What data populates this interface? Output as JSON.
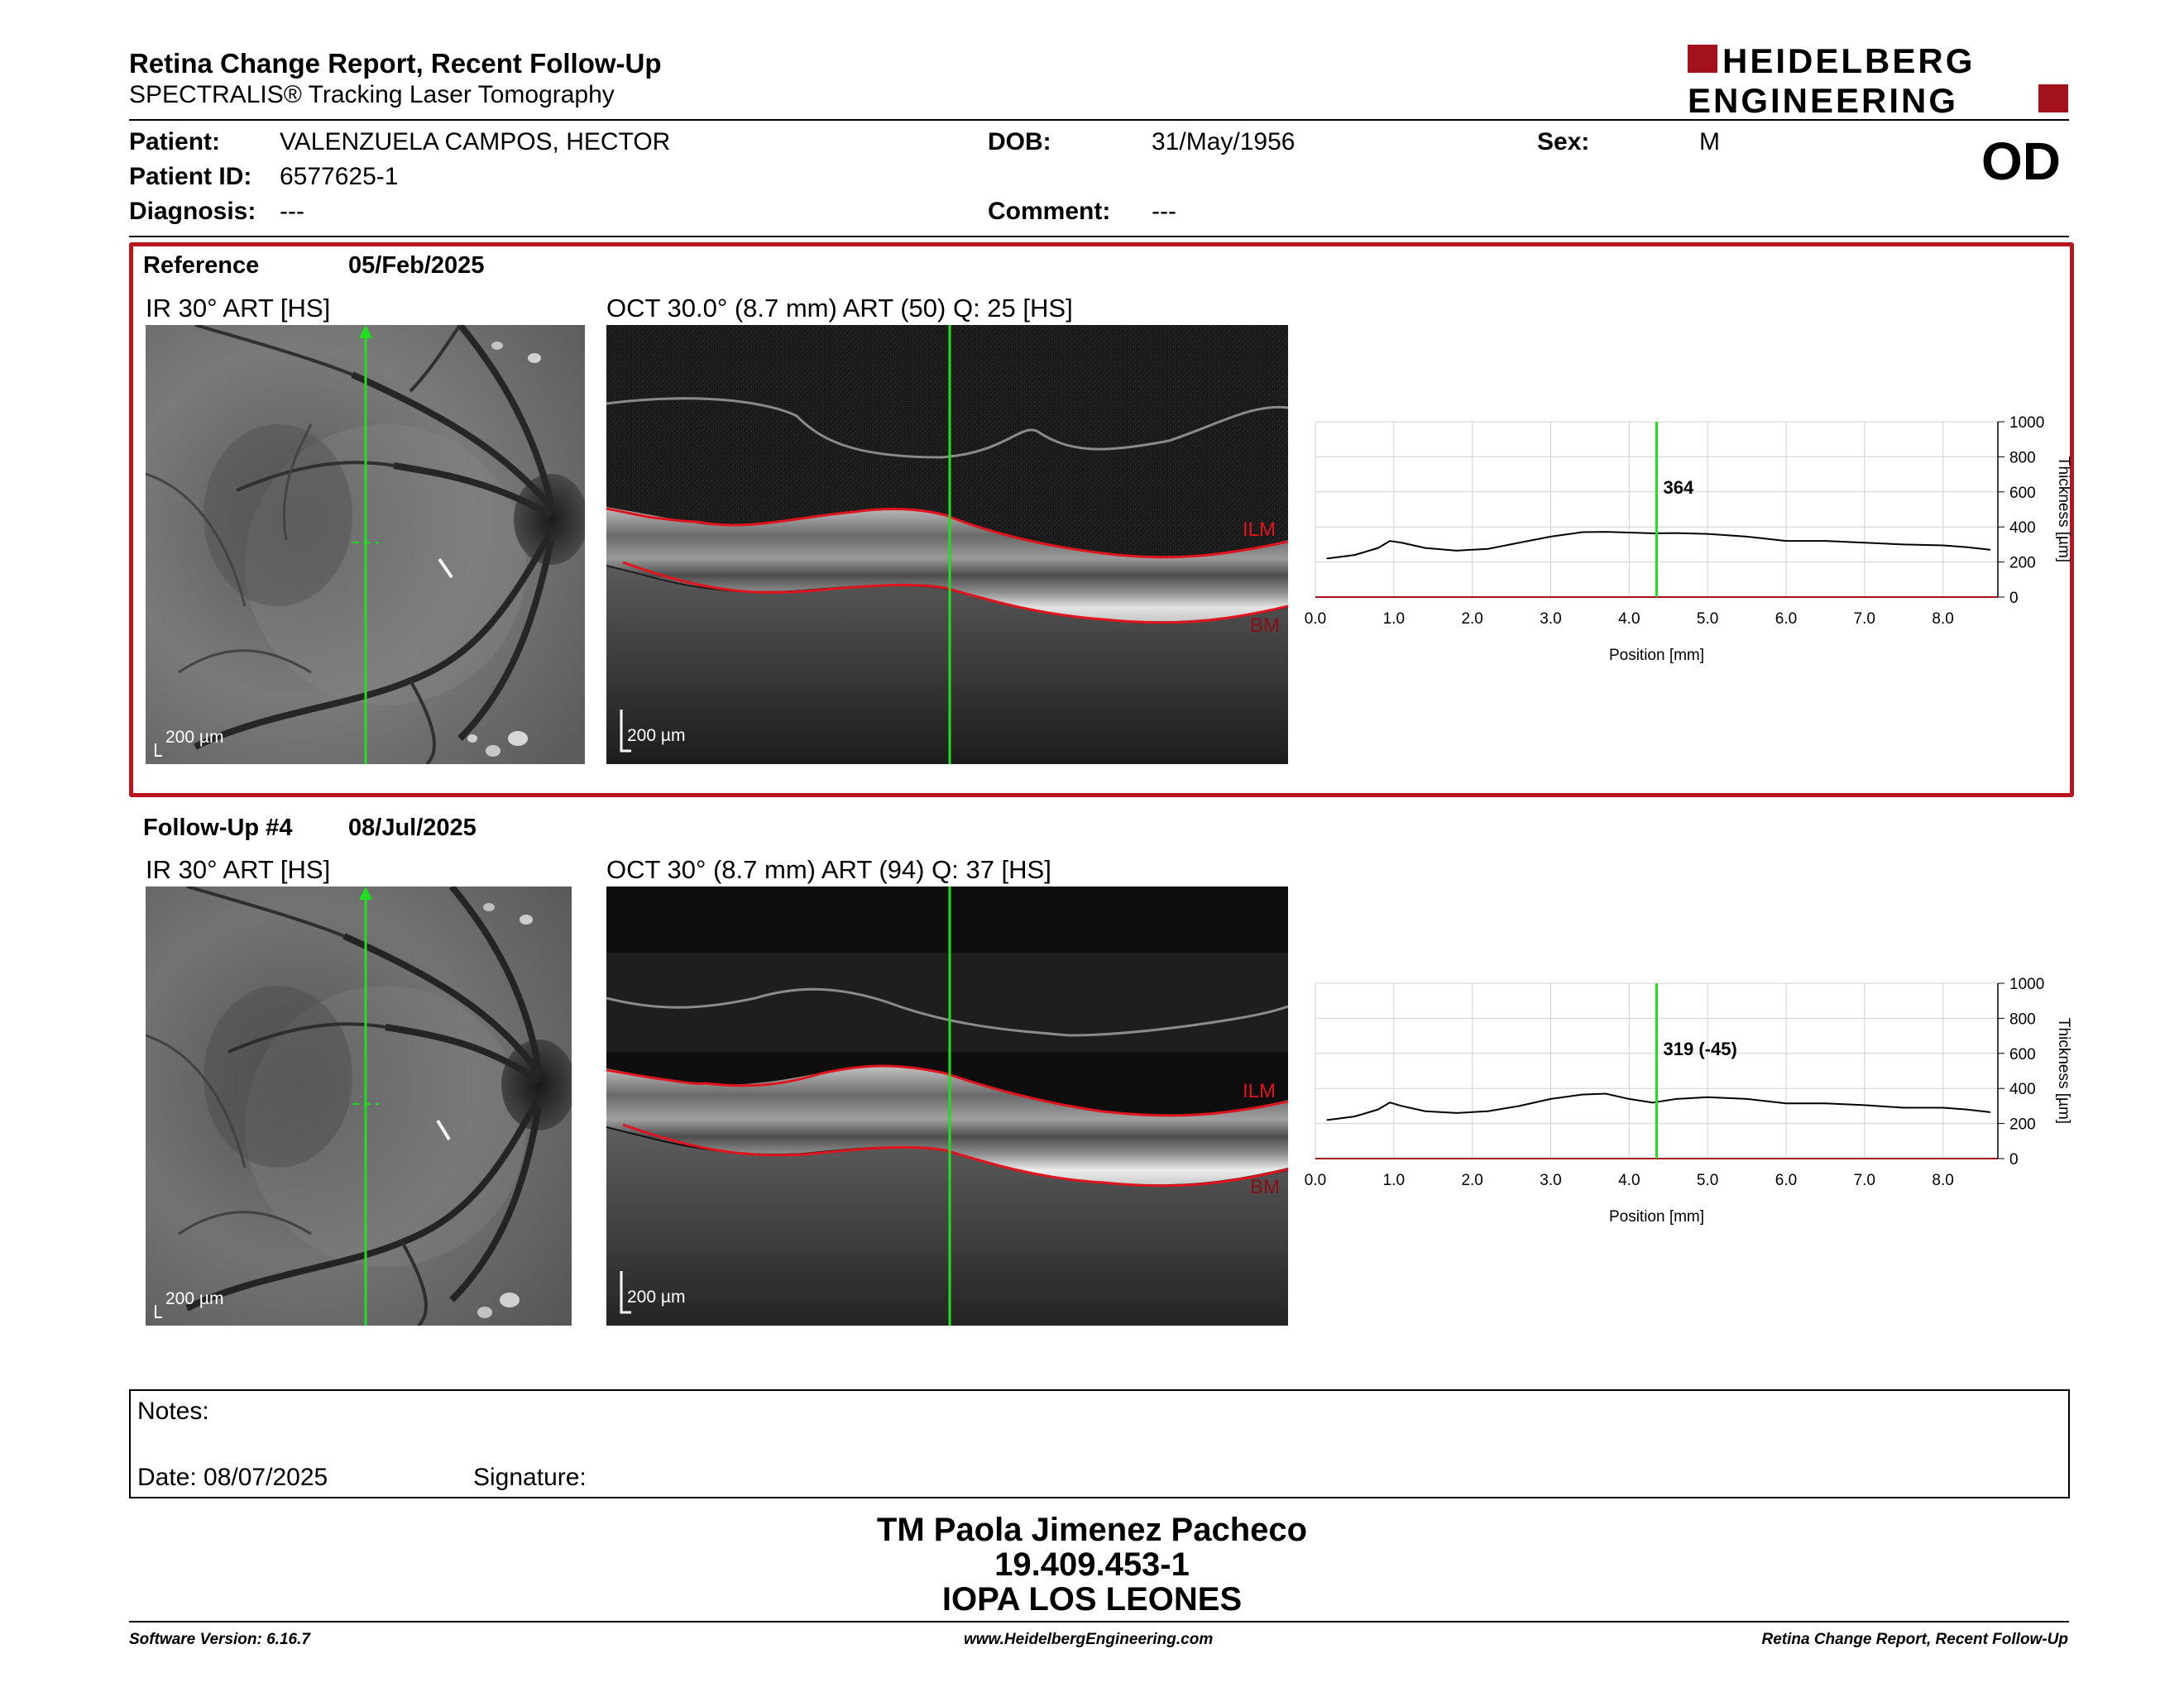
{
  "header": {
    "report_title": "Retina Change Report, Recent Follow-Up",
    "report_subtitle": "SPECTRALIS® Tracking Laser Tomography",
    "logo_line1": "HEIDELBERG",
    "logo_line2": "ENGINEERING",
    "eye": "OD"
  },
  "patient": {
    "patient_label": "Patient:",
    "patient_value": "VALENZUELA CAMPOS, HECTOR",
    "id_label": "Patient ID:",
    "id_value": "6577625-1",
    "diagnosis_label": "Diagnosis:",
    "diagnosis_value": "---",
    "dob_label": "DOB:",
    "dob_value": "31/May/1956",
    "comment_label": "Comment:",
    "comment_value": "---",
    "sex_label": "Sex:",
    "sex_value": "M"
  },
  "reference": {
    "label": "Reference",
    "date": "05/Feb/2025",
    "ir_title": "IR 30° ART [HS]",
    "oct_title": "OCT 30.0° (8.7 mm) ART (50) Q: 25 [HS]",
    "ir_scale": "200 µm",
    "oct_scale": "200 µm",
    "ilm": "ILM",
    "bm": "BM",
    "chart_marker_label": "364"
  },
  "followup": {
    "label": "Follow-Up #4",
    "date": "08/Jul/2025",
    "ir_title": "IR 30° ART [HS]",
    "oct_title": "OCT 30° (8.7 mm) ART (94) Q: 37 [HS]",
    "ir_scale": "200 µm",
    "oct_scale": "200 µm",
    "ilm": "ILM",
    "bm": "BM",
    "chart_marker_label": "319 (-45)"
  },
  "chart_data": [
    {
      "type": "line",
      "xlabel": "Position [mm]",
      "ylabel": "Thickness [µm]",
      "xlim": [
        0,
        8.7
      ],
      "ylim": [
        0,
        1000
      ],
      "x_ticks": [
        "0.0",
        "1.0",
        "2.0",
        "3.0",
        "4.0",
        "5.0",
        "6.0",
        "7.0",
        "8.0"
      ],
      "y_ticks": [
        "0",
        "200",
        "400",
        "600",
        "800",
        "1000"
      ],
      "marker_x": 4.35,
      "marker_value": 364,
      "series": [
        {
          "x": [
            0.15,
            0.5,
            0.8,
            0.95,
            1.1,
            1.4,
            1.8,
            2.2,
            2.6,
            3.0,
            3.4,
            3.7,
            4.0,
            4.3,
            4.6,
            5.0,
            5.5,
            6.0,
            6.5,
            7.0,
            7.5,
            8.0,
            8.3,
            8.6
          ],
          "values": [
            220,
            240,
            280,
            320,
            310,
            280,
            265,
            275,
            310,
            345,
            370,
            372,
            368,
            364,
            365,
            360,
            345,
            320,
            320,
            310,
            300,
            295,
            285,
            270
          ]
        }
      ]
    },
    {
      "type": "line",
      "xlabel": "Position [mm]",
      "ylabel": "Thickness [µm]",
      "xlim": [
        0,
        8.7
      ],
      "ylim": [
        0,
        1000
      ],
      "x_ticks": [
        "0.0",
        "1.0",
        "2.0",
        "3.0",
        "4.0",
        "5.0",
        "6.0",
        "7.0",
        "8.0"
      ],
      "y_ticks": [
        "0",
        "200",
        "400",
        "600",
        "800",
        "1000"
      ],
      "marker_x": 4.35,
      "marker_value": 319,
      "series": [
        {
          "x": [
            0.15,
            0.5,
            0.8,
            0.95,
            1.1,
            1.4,
            1.8,
            2.2,
            2.6,
            3.0,
            3.4,
            3.7,
            4.0,
            4.3,
            4.6,
            5.0,
            5.5,
            6.0,
            6.5,
            7.0,
            7.5,
            8.0,
            8.3,
            8.6
          ],
          "values": [
            220,
            240,
            280,
            320,
            300,
            270,
            260,
            270,
            300,
            340,
            365,
            370,
            340,
            319,
            340,
            350,
            340,
            315,
            315,
            305,
            290,
            290,
            280,
            265
          ]
        }
      ]
    }
  ],
  "notes": {
    "notes_label": "Notes:",
    "date_label": "Date: 08/07/2025",
    "signature_label": "Signature:"
  },
  "signatory": {
    "name": "TM Paola Jimenez Pacheco",
    "rut": "19.409.453-1",
    "institution": "IOPA LOS LEONES"
  },
  "footer": {
    "software": "Software Version: 6.16.7",
    "website": "www.HeidelbergEngineering.com",
    "report": "Retina Change Report, Recent Follow-Up"
  },
  "colors": {
    "brand_red": "#a3121c",
    "scan_green": "#1fe01f",
    "layer_red": "#e0141e"
  }
}
